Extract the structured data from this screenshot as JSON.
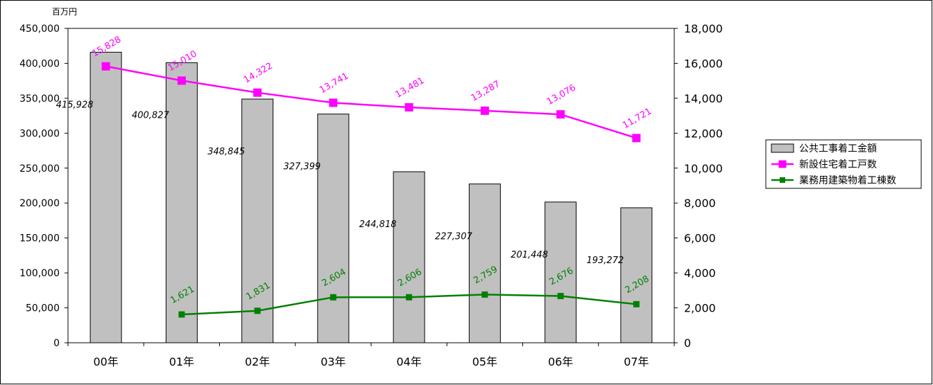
{
  "chart_data": {
    "type": "bar",
    "unit_label": "百万円",
    "categories": [
      "00年",
      "01年",
      "02年",
      "03年",
      "04年",
      "05年",
      "06年",
      "07年"
    ],
    "y_left": {
      "range": [
        0,
        450000
      ],
      "ticks": [
        "0",
        "50,000",
        "100,000",
        "150,000",
        "200,000",
        "250,000",
        "300,000",
        "350,000",
        "400,000",
        "450,000"
      ]
    },
    "y_right": {
      "range": [
        0,
        18000
      ],
      "ticks": [
        "0",
        "2,000",
        "4,000",
        "6,000",
        "8,000",
        "10,000",
        "12,000",
        "14,000",
        "16,000",
        "18,000"
      ]
    },
    "grid": false,
    "legend_position": "right",
    "series": [
      {
        "name": "公共工事着工金額",
        "kind": "bar",
        "axis": "left",
        "color": "#c0c0c0",
        "values": [
          415928,
          400827,
          348845,
          327399,
          244818,
          227307,
          201448,
          193272
        ],
        "labels": [
          "415,928",
          "400,827",
          "348,845",
          "327,399",
          "244,818",
          "227,307",
          "201,448",
          "193,272"
        ]
      },
      {
        "name": "新設住宅着工戸数",
        "kind": "line",
        "axis": "right",
        "color": "#ff00ff",
        "values": [
          15828,
          15010,
          14322,
          13741,
          13481,
          13287,
          13076,
          11721
        ],
        "labels": [
          "15,828",
          "15,010",
          "14,322",
          "13,741",
          "13,481",
          "13,287",
          "13,076",
          "11,721"
        ]
      },
      {
        "name": "業務用建築物着工棟数",
        "kind": "line",
        "axis": "right",
        "color": "#008000",
        "values": [
          null,
          1621,
          1831,
          2604,
          2606,
          2759,
          2676,
          2208
        ],
        "labels": [
          null,
          "1,621",
          "1,831",
          "2,604",
          "2,606",
          "2,759",
          "2,676",
          "2,208"
        ]
      }
    ]
  }
}
